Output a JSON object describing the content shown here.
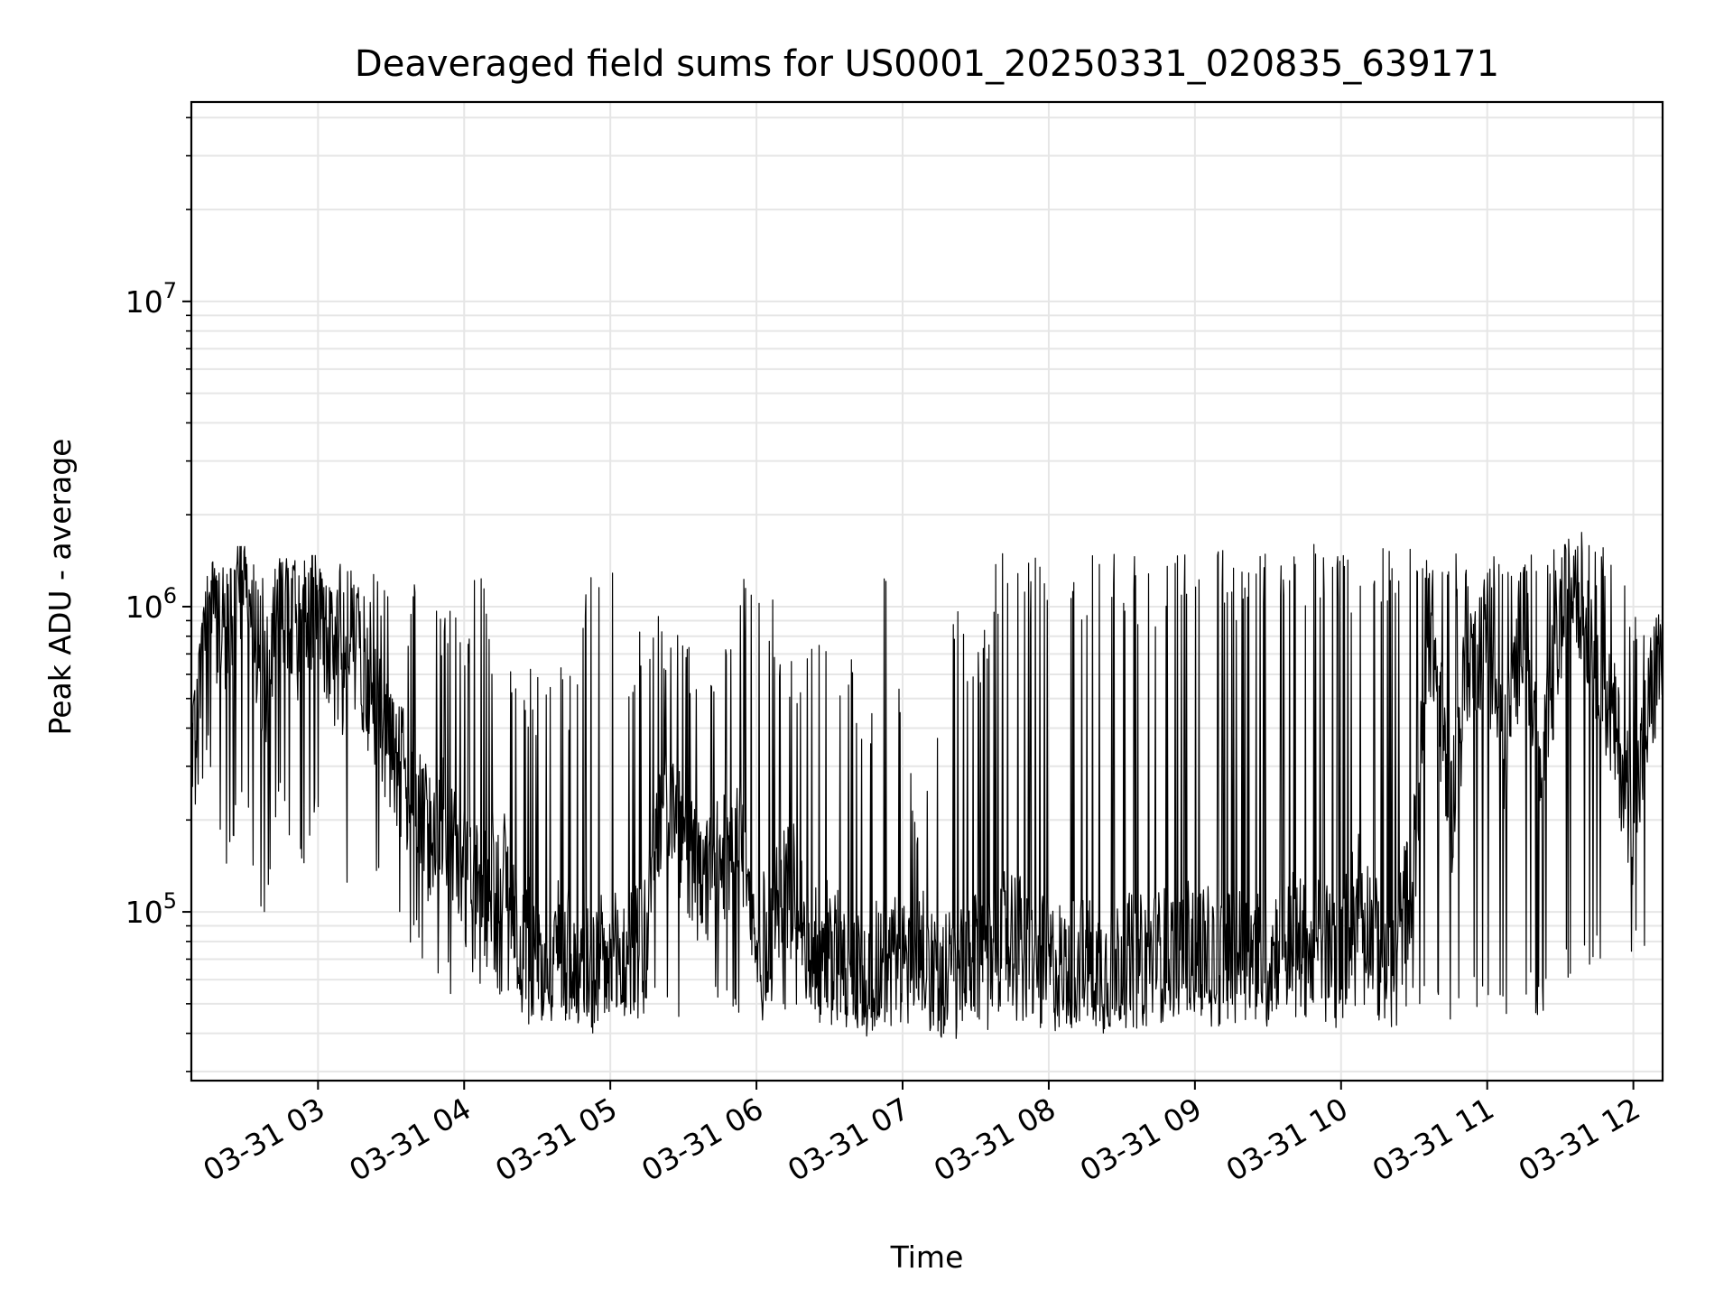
{
  "chart_data": {
    "type": "line",
    "title": "Deaveraged field sums for US0001_20250331_020835_639171",
    "xlabel": "Time",
    "ylabel": "Peak ADU - average",
    "yscale": "log",
    "ylim": [
      28000,
      45000000
    ],
    "y_ticks": [
      {
        "value": 100000,
        "base": "10",
        "exp": "5"
      },
      {
        "value": 1000000,
        "base": "10",
        "exp": "6"
      },
      {
        "value": 10000000,
        "base": "10",
        "exp": "7"
      }
    ],
    "xlim": [
      "2025-03-31 02:08",
      "2025-03-31 12:12"
    ],
    "x_ticks": [
      {
        "time": "2025-03-31 03:00",
        "label": "03-31 03"
      },
      {
        "time": "2025-03-31 04:00",
        "label": "03-31 04"
      },
      {
        "time": "2025-03-31 05:00",
        "label": "03-31 05"
      },
      {
        "time": "2025-03-31 06:00",
        "label": "03-31 06"
      },
      {
        "time": "2025-03-31 07:00",
        "label": "03-31 07"
      },
      {
        "time": "2025-03-31 08:00",
        "label": "03-31 08"
      },
      {
        "time": "2025-03-31 09:00",
        "label": "03-31 09"
      },
      {
        "time": "2025-03-31 10:00",
        "label": "03-31 10"
      },
      {
        "time": "2025-03-31 11:00",
        "label": "03-31 11"
      },
      {
        "time": "2025-03-31 12:00",
        "label": "03-31 12"
      }
    ],
    "grid": true,
    "series": [
      {
        "color": "#000000",
        "x": [
          "2025-03-31 02:08",
          "2025-03-31 02:15",
          "2025-03-31 02:22",
          "2025-03-31 02:30",
          "2025-03-31 02:37",
          "2025-03-31 02:45",
          "2025-03-31 02:52",
          "2025-03-31 03:00",
          "2025-03-31 03:07",
          "2025-03-31 03:15",
          "2025-03-31 03:22",
          "2025-03-31 03:30",
          "2025-03-31 03:37",
          "2025-03-31 03:45",
          "2025-03-31 03:52",
          "2025-03-31 04:00",
          "2025-03-31 04:07",
          "2025-03-31 04:15",
          "2025-03-31 04:22",
          "2025-03-31 04:30",
          "2025-03-31 04:37",
          "2025-03-31 04:45",
          "2025-03-31 04:52",
          "2025-03-31 05:00",
          "2025-03-31 05:07",
          "2025-03-31 05:15",
          "2025-03-31 05:22",
          "2025-03-31 05:30",
          "2025-03-31 05:37",
          "2025-03-31 05:45",
          "2025-03-31 05:52",
          "2025-03-31 06:00",
          "2025-03-31 06:07",
          "2025-03-31 06:15",
          "2025-03-31 06:22",
          "2025-03-31 06:30",
          "2025-03-31 06:37",
          "2025-03-31 06:45",
          "2025-03-31 06:52",
          "2025-03-31 07:00",
          "2025-03-31 07:07",
          "2025-03-31 07:15",
          "2025-03-31 07:22",
          "2025-03-31 07:30",
          "2025-03-31 07:37",
          "2025-03-31 07:45",
          "2025-03-31 07:52",
          "2025-03-31 08:00",
          "2025-03-31 08:07",
          "2025-03-31 08:15",
          "2025-03-31 08:22",
          "2025-03-31 08:30",
          "2025-03-31 08:37",
          "2025-03-31 08:45",
          "2025-03-31 08:52",
          "2025-03-31 09:00",
          "2025-03-31 09:07",
          "2025-03-31 09:15",
          "2025-03-31 09:22",
          "2025-03-31 09:30",
          "2025-03-31 09:37",
          "2025-03-31 09:45",
          "2025-03-31 09:52",
          "2025-03-31 10:00",
          "2025-03-31 10:07",
          "2025-03-31 10:15",
          "2025-03-31 10:22",
          "2025-03-31 10:30",
          "2025-03-31 10:37",
          "2025-03-31 10:45",
          "2025-03-31 10:52",
          "2025-03-31 11:00",
          "2025-03-31 11:07",
          "2025-03-31 11:15",
          "2025-03-31 11:22",
          "2025-03-31 11:30",
          "2025-03-31 11:37",
          "2025-03-31 11:45",
          "2025-03-31 11:52",
          "2025-03-31 12:00",
          "2025-03-31 12:07",
          "2025-03-31 12:12"
        ],
        "values": [
          300000,
          1200000,
          700000,
          1400000,
          500000,
          1000000,
          800000,
          1100000,
          600000,
          700000,
          500000,
          350000,
          250000,
          180000,
          200000,
          130000,
          110000,
          150000,
          90000,
          70000,
          80000,
          75000,
          65000,
          70000,
          68000,
          90000,
          250000,
          160000,
          120000,
          140000,
          200000,
          70000,
          100000,
          120000,
          80000,
          75000,
          70000,
          65000,
          70000,
          68000,
          72000,
          65000,
          60000,
          68000,
          75000,
          90000,
          70000,
          66000,
          68000,
          72000,
          65000,
          70000,
          68000,
          72000,
          75000,
          80000,
          70000,
          72000,
          75000,
          68000,
          90000,
          75000,
          80000,
          70000,
          120000,
          75000,
          68000,
          150000,
          900000,
          200000,
          700000,
          800000,
          300000,
          1000000,
          250000,
          900000,
          1200000,
          700000,
          400000,
          200000,
          500000,
          700000
        ],
        "floor": [
          250000,
          400000,
          150000,
          300000,
          100000,
          300000,
          150000,
          250000,
          200000,
          120000,
          150000,
          120000,
          100000,
          80000,
          70000,
          60000,
          70000,
          60000,
          55000,
          52000,
          55000,
          50000,
          48000,
          50000,
          52000,
          55000,
          60000,
          55000,
          52000,
          55000,
          58000,
          52000,
          55000,
          55000,
          53000,
          52000,
          50000,
          48000,
          50000,
          50000,
          50000,
          48000,
          47000,
          50000,
          52000,
          55000,
          52000,
          50000,
          50000,
          52000,
          50000,
          52000,
          52000,
          53000,
          55000,
          55000,
          52000,
          52000,
          55000,
          50000,
          52000,
          50000,
          55000,
          50000,
          52000,
          52000,
          50000,
          55000,
          60000,
          55000,
          60000,
          60000,
          55000,
          65000,
          55000,
          70000,
          80000,
          80000,
          120000,
          90000,
          70000,
          150000
        ],
        "peak": [
          400000,
          1300000,
          1500000,
          1500000,
          1400000,
          1500000,
          1400000,
          1400000,
          1400000,
          1400000,
          1300000,
          1300000,
          1100000,
          1500000,
          1000000,
          900000,
          1500000,
          600000,
          700000,
          600000,
          800000,
          600000,
          1500000,
          1500000,
          700000,
          1000000,
          900000,
          800000,
          750000,
          700000,
          1500000,
          1100000,
          1100000,
          700000,
          900000,
          700000,
          800000,
          400000,
          1500000,
          500000,
          200000,
          400000,
          1100000,
          650000,
          1500000,
          1500000,
          1500000,
          1500000,
          1500000,
          1500000,
          1500000,
          1500000,
          1500000,
          1500000,
          1600000,
          1500000,
          1600000,
          1500000,
          1700000,
          1600000,
          1500000,
          1600000,
          1600000,
          1500000,
          1500000,
          1600000,
          1500000,
          1600000,
          1500000,
          1600000,
          1500000,
          1500000,
          1500000,
          1500000,
          1500000,
          1600000,
          1700000,
          1700000,
          1400000,
          1100000,
          900000,
          1000000
        ]
      }
    ]
  }
}
